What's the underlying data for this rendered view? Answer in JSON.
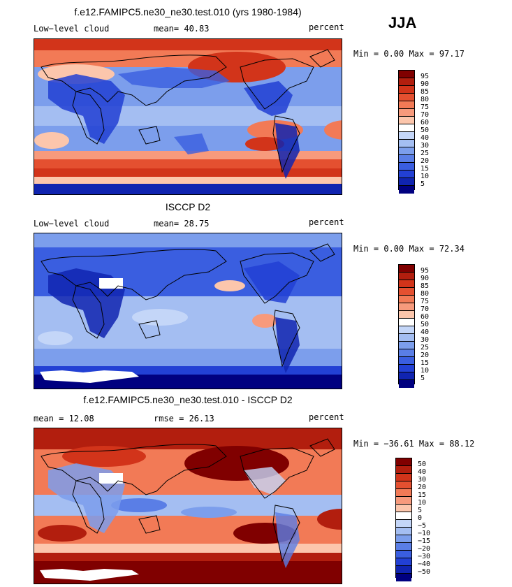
{
  "season": "JJA",
  "panels": [
    {
      "title": "f.e12.FAMIPC5.ne30_ne30.test.010 (yrs 1980-1984)",
      "left_label": "Low−level cloud",
      "mid_label": "mean=  40.83",
      "units": "percent",
      "minmax": "Min =   0.00 Max =  97.17",
      "colorbar": {
        "colors": [
          "#800000",
          "#b21e0e",
          "#d2341a",
          "#e45030",
          "#f27a56",
          "#f79a7c",
          "#fcc6ac",
          "#ffffff",
          "#c4d6f8",
          "#a4bef2",
          "#7c9eec",
          "#5a7ee6",
          "#3a5ee0",
          "#2240d4",
          "#1024b0",
          "#000080"
        ],
        "labels": [
          "95",
          "90",
          "85",
          "80",
          "75",
          "70",
          "60",
          "50",
          "40",
          "30",
          "25",
          "20",
          "15",
          "10",
          "5"
        ]
      }
    },
    {
      "title": "ISCCP D2",
      "left_label": "Low−level cloud",
      "mid_label": "mean=  28.75",
      "units": "percent",
      "minmax": "Min =   0.00 Max =  72.34",
      "colorbar": {
        "colors": [
          "#800000",
          "#b21e0e",
          "#d2341a",
          "#e45030",
          "#f27a56",
          "#f79a7c",
          "#fcc6ac",
          "#ffffff",
          "#c4d6f8",
          "#a4bef2",
          "#7c9eec",
          "#5a7ee6",
          "#3a5ee0",
          "#2240d4",
          "#1024b0",
          "#000080"
        ],
        "labels": [
          "95",
          "90",
          "85",
          "80",
          "75",
          "70",
          "60",
          "50",
          "40",
          "30",
          "25",
          "20",
          "15",
          "10",
          "5"
        ]
      }
    },
    {
      "title": "f.e12.FAMIPC5.ne30_ne30.test.010 - ISCCP D2",
      "left_label": "mean =  12.08",
      "mid_label": "rmse =  26.13",
      "units": "percent",
      "minmax": "Min = −36.61 Max =  88.12",
      "colorbar": {
        "colors": [
          "#800000",
          "#b21e0e",
          "#d2341a",
          "#e45030",
          "#f27a56",
          "#f79a7c",
          "#fcc6ac",
          "#ffffff",
          "#c4d6f8",
          "#a4bef2",
          "#7c9eec",
          "#5a7ee6",
          "#3a5ee0",
          "#2240d4",
          "#1024b0",
          "#000080"
        ],
        "labels": [
          "50",
          "40",
          "30",
          "20",
          "15",
          "10",
          "5",
          "0",
          "−5",
          "−10",
          "−15",
          "−20",
          "−30",
          "−40",
          "−50"
        ]
      }
    }
  ]
}
